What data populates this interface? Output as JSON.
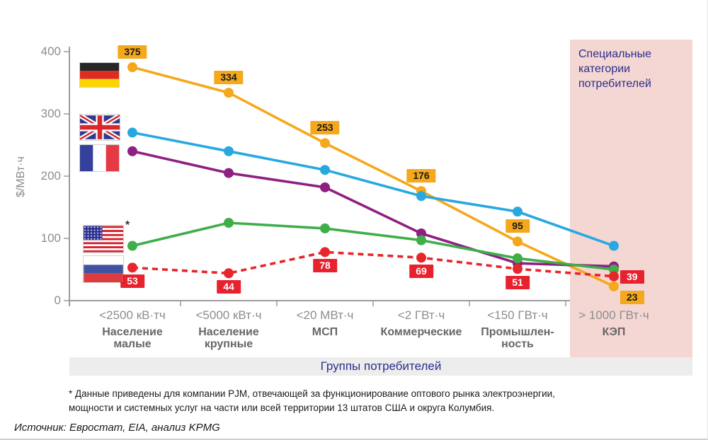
{
  "page": {
    "footnote": "* Данные приведены для компании PJM, отвечающей за функционирование оптового рынка электроэнергии,\nмощности и системных услуг на части или всей территории 13 штатов США и округа Колумбия.",
    "source": "Источник: Евростат, EIA, анализ KPMG"
  },
  "colors": {
    "badge_orange": "#F5A81C",
    "badge_red": "#E8212E",
    "special_region_bg": "#F4D6D2",
    "axis_band_bg": "#EDEDED",
    "accent_text": "#2B2E8C",
    "axis": "#9B9B9B",
    "tick_text": "#8D8D8D",
    "group_text": "#666666"
  },
  "chart_data": {
    "type": "line",
    "title": "",
    "xlabel": "Группы потребителей",
    "ylabel": "$/МВт·ч",
    "ylim": [
      0,
      400
    ],
    "y_ticks": [
      0,
      100,
      200,
      300,
      400
    ],
    "grid": false,
    "legend_position": "flags-left",
    "categories": [
      {
        "unit": "<2500 кВ·тч",
        "group": "Население\nмалые"
      },
      {
        "unit": "<5000 кВт·ч",
        "group": "Население\nкрупные"
      },
      {
        "unit": "<20 МВт·ч",
        "group": "МСП"
      },
      {
        "unit": "<2 ГВт·ч",
        "group": "Коммерческие"
      },
      {
        "unit": "<150 ГВт·ч",
        "group": "Промышлен-\nность"
      },
      {
        "unit": "> 1000 ГВт·ч",
        "group": "КЭП"
      }
    ],
    "series": [
      {
        "id": "germany",
        "flag_icon": "germany-flag-icon",
        "color": "#F5A81C",
        "style": "solid",
        "values": [
          375,
          334,
          253,
          176,
          95,
          23
        ],
        "point_labels": {
          "show": true,
          "badge": "orange",
          "positions": [
            "above",
            "above",
            "above",
            "above",
            "above",
            "below-right"
          ]
        }
      },
      {
        "id": "uk",
        "flag_icon": "uk-flag-icon",
        "color": "#29A8E0",
        "style": "solid",
        "values": [
          270,
          240,
          210,
          168,
          143,
          88
        ],
        "point_labels": {
          "show": false
        }
      },
      {
        "id": "france",
        "flag_icon": "france-flag-icon",
        "color": "#8E2082",
        "style": "solid",
        "values": [
          240,
          205,
          182,
          108,
          60,
          55
        ],
        "point_labels": {
          "show": false
        }
      },
      {
        "id": "usa",
        "flag_icon": "usa-flag-icon",
        "color": "#3FAE49",
        "style": "solid",
        "values": [
          88,
          125,
          116,
          97,
          68,
          50
        ],
        "note_marker": "*",
        "point_labels": {
          "show": false
        }
      },
      {
        "id": "russia",
        "flag_icon": "russia-flag-icon",
        "color": "#E8252A",
        "style": "dashed",
        "values": [
          53,
          44,
          78,
          69,
          51,
          39
        ],
        "point_labels": {
          "show": true,
          "badge": "red",
          "positions": [
            "below",
            "below",
            "below",
            "below",
            "below",
            "right"
          ]
        }
      }
    ],
    "special_region": {
      "label": "Специальные категории потребителей",
      "covers_category": "> 1000 ГВт·ч"
    }
  }
}
